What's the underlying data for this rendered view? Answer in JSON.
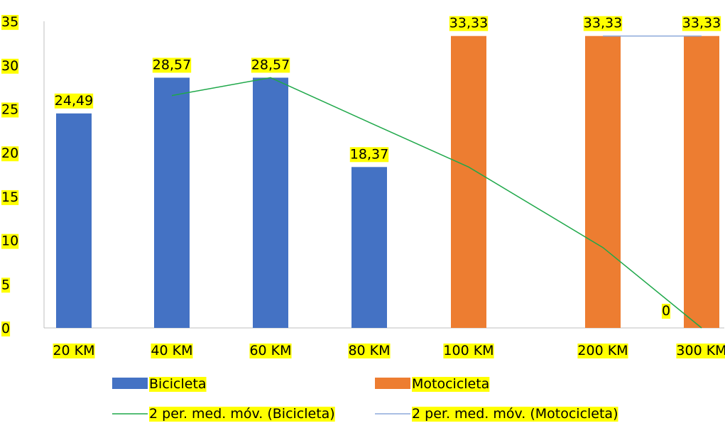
{
  "chart_data": {
    "type": "bar",
    "categories": [
      "20 KM",
      "40 KM",
      "60 KM",
      "80 KM",
      "100 KM",
      "200 KM",
      "300 KM"
    ],
    "series": [
      {
        "name": "Bicicleta",
        "type": "bar",
        "color": "#4472c4",
        "values": [
          24.49,
          28.57,
          28.57,
          18.37,
          null,
          null,
          null
        ],
        "labels": [
          "24,49",
          "28,57",
          "28,57",
          "18,37",
          null,
          null,
          null
        ]
      },
      {
        "name": "Motocicleta",
        "type": "bar",
        "color": "#ed7d31",
        "values": [
          null,
          null,
          null,
          null,
          33.33,
          33.33,
          33.33
        ],
        "labels": [
          null,
          null,
          null,
          null,
          "33,33",
          "33,33",
          "33,33"
        ]
      }
    ],
    "trendlines": [
      {
        "name": "2 per. med. móv. (Bicicleta)",
        "type": "line",
        "color": "#1fa84a",
        "values": [
          null,
          26.53,
          28.57,
          23.47,
          18.37,
          9.18,
          0
        ]
      },
      {
        "name": "2 per. med. móv. (Motocicleta)",
        "type": "line",
        "color": "#8eaadb",
        "values": [
          null,
          null,
          null,
          null,
          null,
          33.33,
          33.33
        ]
      }
    ],
    "extra_labels": [
      {
        "category": "300 KM",
        "text": "0"
      }
    ],
    "ylim": [
      0,
      35
    ],
    "yticks": [
      "0",
      "5",
      "10",
      "15",
      "20",
      "25",
      "30",
      "35"
    ],
    "grid": false,
    "legend_position": "bottom"
  }
}
